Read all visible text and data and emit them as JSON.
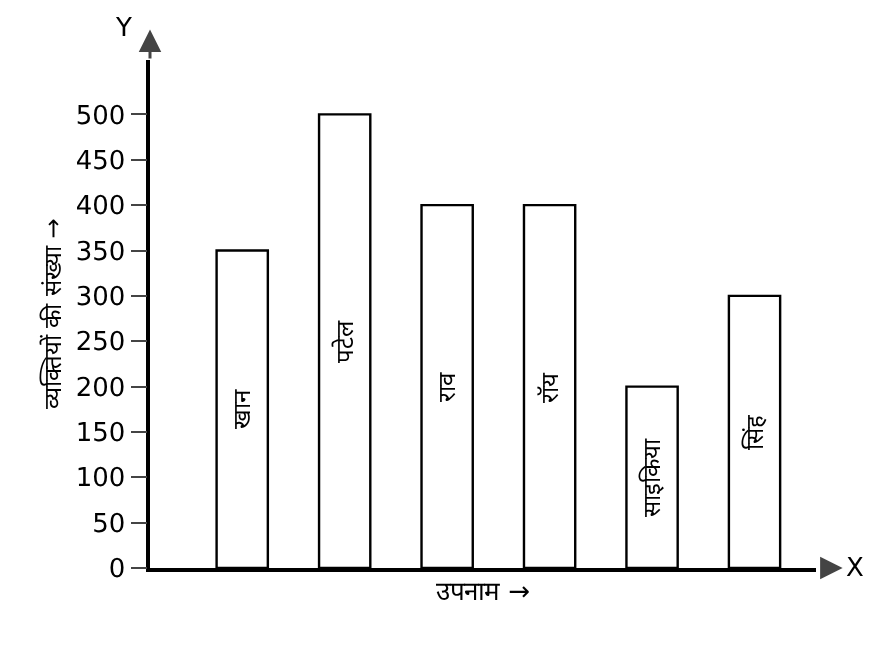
{
  "chart_data": {
    "type": "bar",
    "xlabel": "उपनाम →",
    "ylabel": "व्यक्तियों की संख्या →",
    "categories": [
      "खान",
      "पटेल",
      "राव",
      "रॉय",
      "साइकिया",
      "सिंह"
    ],
    "values": [
      350,
      500,
      400,
      400,
      200,
      300
    ],
    "color": "#ffffff",
    "ylim": [
      0,
      560
    ],
    "yticks": [
      0,
      50,
      100,
      150,
      200,
      250,
      300,
      350,
      400,
      450,
      500
    ],
    "grid": false,
    "legend": false,
    "tick_labels": "y",
    "annotations": [
      "Y",
      "X"
    ]
  }
}
